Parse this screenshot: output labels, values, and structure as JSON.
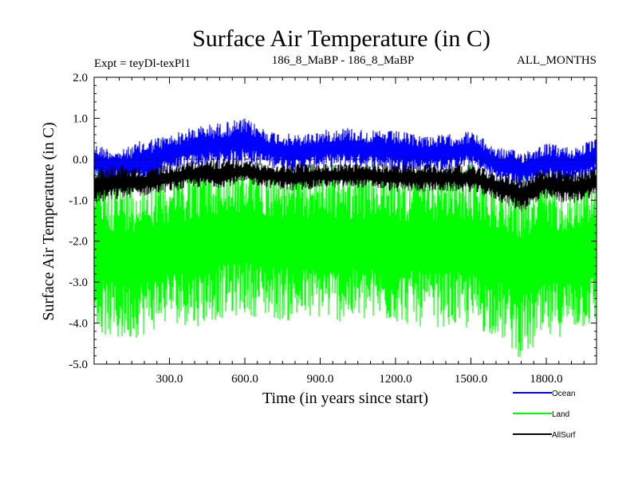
{
  "chart_data": {
    "type": "line",
    "title": "Surface Air Temperature (in C)",
    "expt_label": "Expt = teyDl-texPl1",
    "subtitle": "186_8_MaBP - 186_8_MaBP",
    "months_label": "ALL_MONTHS",
    "xlabel": "Time (in years since start)",
    "ylabel": "Surface Air Temperature (in C)",
    "xlim": [
      0,
      2000
    ],
    "ylim": [
      -5.0,
      2.0
    ],
    "x_ticks": [
      300,
      600,
      900,
      1200,
      1500,
      1800
    ],
    "x_tick_labels": [
      "300.0",
      "600.0",
      "900.0",
      "1200.0",
      "1500.0",
      "1800.0"
    ],
    "y_ticks": [
      -5,
      -4,
      -3,
      -2,
      -1,
      0,
      1,
      2
    ],
    "y_tick_labels": [
      "-5.0",
      "-4.0",
      "-3.0",
      "-2.0",
      "-1.0",
      "0.0",
      "1.0",
      "2.0"
    ],
    "zero_line": 0.0,
    "series": [
      {
        "name": "Ocean",
        "color": "#0000ff",
        "x": [
          0,
          100,
          200,
          300,
          400,
          500,
          600,
          700,
          800,
          900,
          1000,
          1100,
          1200,
          1300,
          1400,
          1500,
          1600,
          1700,
          1800,
          1900,
          2000
        ],
        "upper": [
          0.4,
          0.2,
          0.5,
          0.6,
          0.8,
          0.9,
          1.0,
          0.7,
          0.6,
          0.7,
          0.8,
          0.7,
          0.7,
          0.6,
          0.6,
          0.7,
          0.3,
          0.2,
          0.4,
          0.3,
          0.5
        ],
        "lower": [
          -0.6,
          -0.5,
          -0.7,
          -0.3,
          -0.2,
          -0.2,
          -0.1,
          -0.2,
          -0.3,
          -0.2,
          -0.2,
          -0.2,
          -0.3,
          -0.3,
          -0.3,
          -0.2,
          -0.5,
          -0.7,
          -0.5,
          -0.6,
          -0.4
        ]
      },
      {
        "name": "Land",
        "color": "#00ff00",
        "x": [
          0,
          100,
          200,
          300,
          400,
          500,
          600,
          700,
          800,
          900,
          1000,
          1100,
          1200,
          1300,
          1400,
          1500,
          1600,
          1700,
          1800,
          1900,
          2000
        ],
        "upper": [
          -0.2,
          -0.4,
          -0.3,
          -0.2,
          -0.1,
          -0.1,
          0.0,
          -0.1,
          -0.2,
          -0.1,
          -0.1,
          -0.1,
          -0.2,
          -0.2,
          -0.2,
          -0.1,
          -0.3,
          -0.4,
          -0.3,
          -0.4,
          -0.2
        ],
        "lower": [
          -4.2,
          -4.5,
          -4.3,
          -4.0,
          -4.1,
          -3.9,
          -3.8,
          -3.9,
          -4.0,
          -3.9,
          -4.0,
          -4.0,
          -4.0,
          -4.1,
          -4.1,
          -4.2,
          -4.3,
          -4.9,
          -4.5,
          -4.2,
          -4.1
        ]
      },
      {
        "name": "AllSurf",
        "color": "#000000",
        "x": [
          0,
          100,
          200,
          300,
          400,
          500,
          600,
          700,
          800,
          900,
          1000,
          1100,
          1200,
          1300,
          1400,
          1500,
          1600,
          1700,
          1800,
          1900,
          2000
        ],
        "upper": [
          -0.2,
          -0.1,
          -0.2,
          -0.1,
          0.0,
          0.0,
          0.0,
          -0.1,
          -0.1,
          -0.1,
          -0.1,
          -0.1,
          -0.1,
          -0.1,
          -0.1,
          -0.1,
          -0.3,
          -0.4,
          -0.2,
          -0.3,
          -0.2
        ],
        "lower": [
          -1.1,
          -1.0,
          -0.9,
          -0.8,
          -0.7,
          -0.7,
          -0.6,
          -0.7,
          -0.8,
          -0.7,
          -0.7,
          -0.7,
          -0.8,
          -0.8,
          -0.8,
          -0.8,
          -1.0,
          -1.3,
          -1.0,
          -1.1,
          -0.9
        ]
      }
    ],
    "legend_position": "bottom-right"
  }
}
